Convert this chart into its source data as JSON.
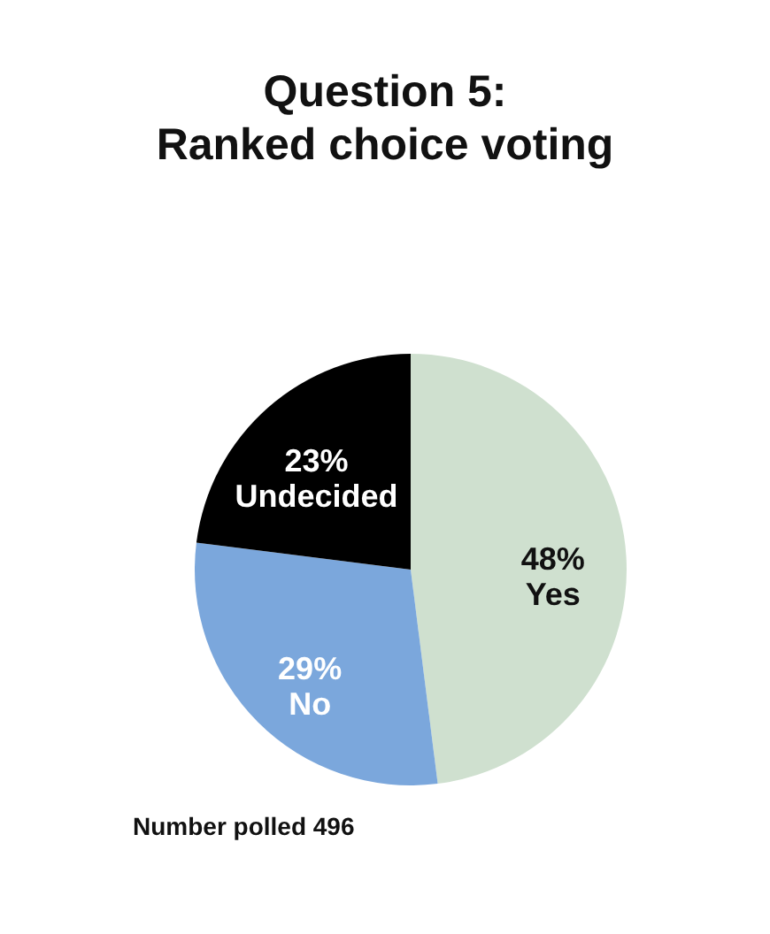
{
  "chart_data": {
    "type": "pie",
    "title": "Question 5:\nRanked choice voting",
    "categories": [
      "Yes",
      "No",
      "Undecided"
    ],
    "values": [
      48,
      29,
      23
    ],
    "value_labels": [
      "48%",
      "29%",
      "23%"
    ],
    "colors": [
      "#cfe0cf",
      "#7ba7dc",
      "#000000"
    ],
    "annotations": [
      "Number polled 496"
    ]
  }
}
